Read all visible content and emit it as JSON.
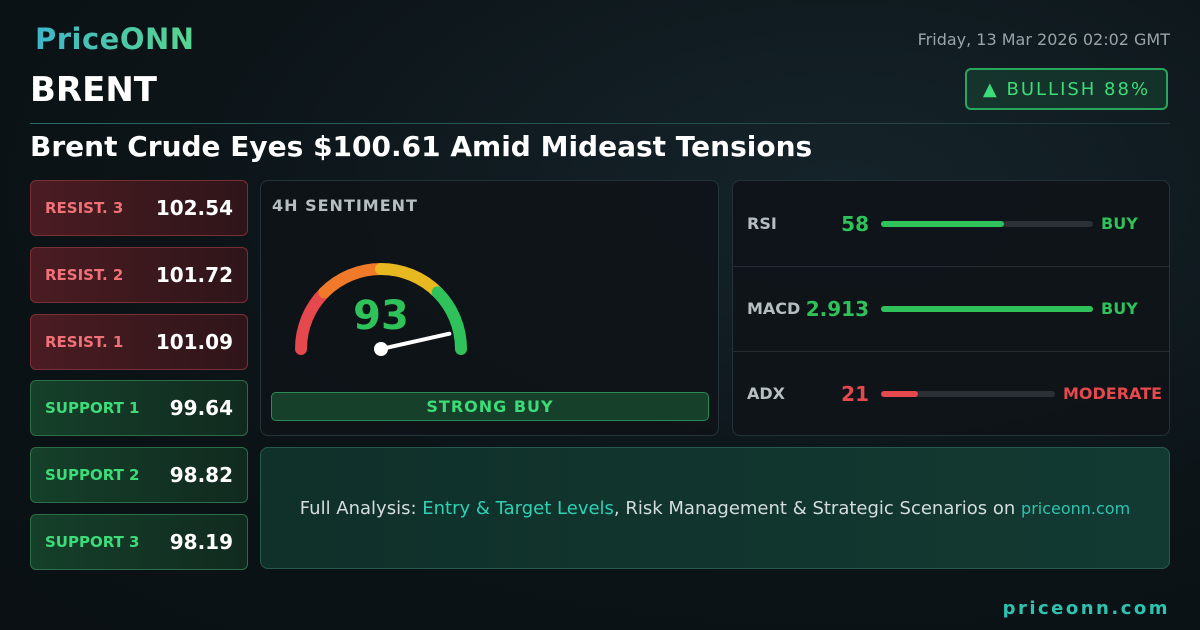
{
  "header": {
    "logo": "PriceONN",
    "symbol": "BRENT",
    "date": "Friday, 13 Mar 2026 02:02 GMT",
    "badge": "▲ BULLISH 88%"
  },
  "headline": "Brent Crude Eyes $100.61 Amid Mideast Tensions",
  "levels": [
    {
      "name": "RESIST. 3",
      "value": 102.54
    },
    {
      "name": "RESIST. 2",
      "value": 101.72
    },
    {
      "name": "RESIST. 1",
      "value": 101.09
    },
    {
      "name": "SUPPORT 1",
      "value": 99.64
    },
    {
      "name": "SUPPORT 2",
      "value": 98.82
    },
    {
      "name": "SUPPORT 3",
      "value": 98.19
    }
  ],
  "sentiment": {
    "title": "4H SENTIMENT",
    "value": 93,
    "label": "STRONG BUY"
  },
  "indicators": [
    {
      "name": "RSI",
      "value": 58,
      "signal": "BUY"
    },
    {
      "name": "MACD",
      "value": 2.913,
      "signal": "BUY"
    },
    {
      "name": "ADX",
      "value": 21,
      "signal": "MODERATE"
    }
  ],
  "cta": {
    "prefix": "Full Analysis: ",
    "highlight": "Entry & Target Levels",
    "middle": ", Risk Management & Strategic Scenarios on ",
    "site": "priceonn.com"
  },
  "footer": "priceonn.com"
}
